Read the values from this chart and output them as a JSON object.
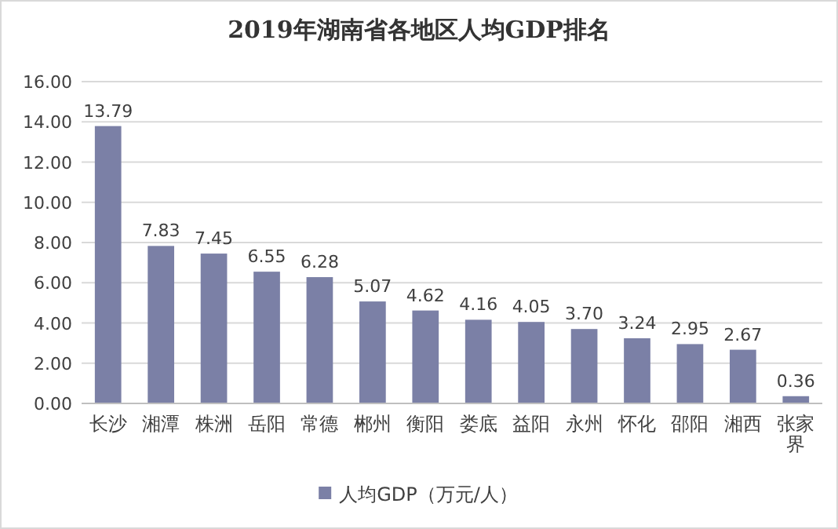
{
  "chart_data": {
    "type": "bar",
    "title": "2019年湖南省各地区人均GDP排名",
    "categories": [
      "长沙",
      "湘潭",
      "株洲",
      "岳阳",
      "常德",
      "郴州",
      "衡阳",
      "娄底",
      "益阳",
      "永州",
      "怀化",
      "邵阳",
      "湘西",
      "张家界"
    ],
    "series": [
      {
        "name": "人均GDP（万元/人）",
        "color": "#7b80a6",
        "values": [
          13.79,
          7.83,
          7.45,
          6.55,
          6.28,
          5.07,
          4.62,
          4.16,
          4.05,
          3.7,
          3.24,
          2.95,
          2.67,
          0.36
        ],
        "value_labels": [
          "13.79",
          "7.83",
          "7.45",
          "6.55",
          "6.28",
          "5.07",
          "4.62",
          "4.16",
          "4.05",
          "3.70",
          "3.24",
          "2.95",
          "2.67",
          "0.36"
        ]
      }
    ],
    "ylim": [
      0,
      16
    ],
    "yticks": [
      {
        "value": 0,
        "label": "0.00"
      },
      {
        "value": 2,
        "label": "2.00"
      },
      {
        "value": 4,
        "label": "4.00"
      },
      {
        "value": 6,
        "label": "6.00"
      },
      {
        "value": 8,
        "label": "8.00"
      },
      {
        "value": 10,
        "label": "10.00"
      },
      {
        "value": 12,
        "label": "12.00"
      },
      {
        "value": 14,
        "label": "14.00"
      },
      {
        "value": 16,
        "label": "16.00"
      }
    ],
    "grid": "y",
    "legend": "bottom"
  }
}
